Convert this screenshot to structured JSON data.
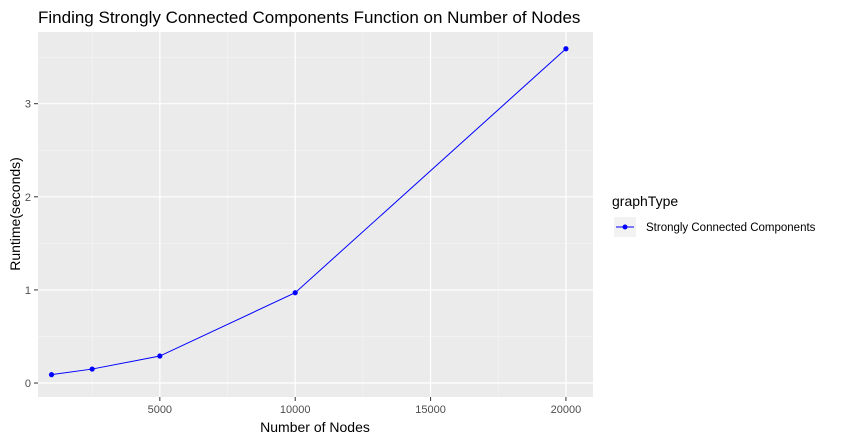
{
  "chart_data": {
    "type": "line",
    "title": "Finding Strongly Connected Components Function on Number of Nodes",
    "xlabel": "Number of Nodes",
    "ylabel": "Runtime(seconds)",
    "xlim": [
      500,
      21000
    ],
    "ylim": [
      -0.15,
      3.77
    ],
    "x_ticks": [
      5000,
      10000,
      15000,
      20000
    ],
    "x_minor": [
      2500,
      7500,
      12500,
      17500
    ],
    "y_ticks": [
      0,
      1,
      2,
      3
    ],
    "y_minor": [
      0.5,
      1.5,
      2.5,
      3.5
    ],
    "grid": true,
    "legend": {
      "title": "graphType",
      "position": "right"
    },
    "series": [
      {
        "name": "Strongly Connected Components",
        "color": "#0000ff",
        "x": [
          1000,
          2500,
          5000,
          10000,
          20000
        ],
        "y": [
          0.09,
          0.15,
          0.29,
          0.97,
          3.59
        ]
      }
    ]
  }
}
